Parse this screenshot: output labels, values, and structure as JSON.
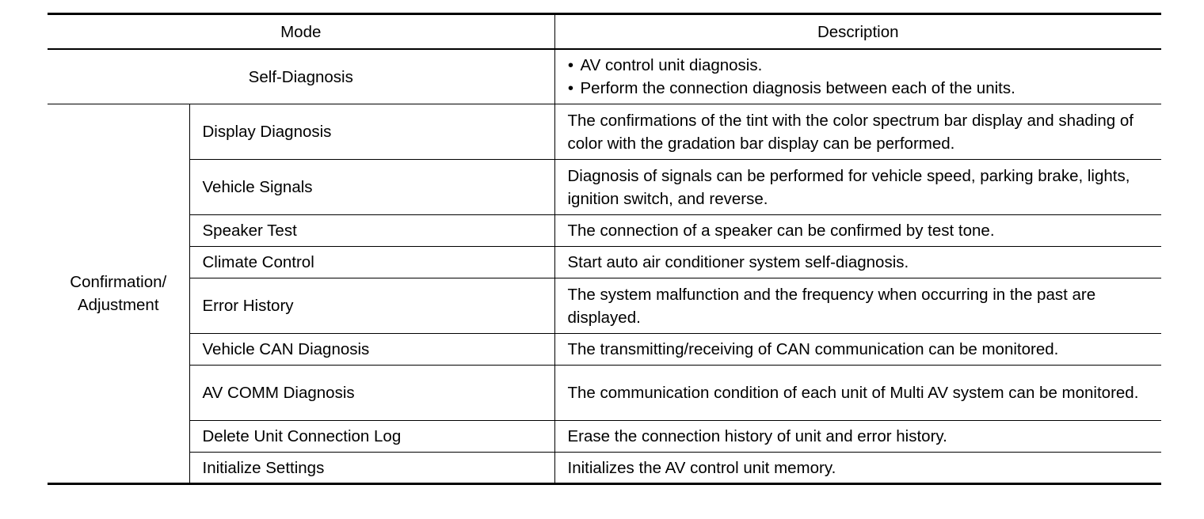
{
  "header": {
    "mode": "Mode",
    "description": "Description"
  },
  "self_diagnosis": {
    "mode": "Self-Diagnosis",
    "bullets": [
      "AV control unit diagnosis.",
      "Perform the connection diagnosis between each of the units."
    ]
  },
  "group_label": "Confirmation/ Adjustment",
  "rows": [
    {
      "mode": "Display Diagnosis",
      "description": "The confirmations of the tint with the color spectrum bar display and shading of color with the gradation bar display can be performed."
    },
    {
      "mode": "Vehicle Signals",
      "description": "Diagnosis of signals can be performed for vehicle speed, parking brake, lights, ignition switch, and reverse."
    },
    {
      "mode": "Speaker Test",
      "description": "The connection of a speaker can be confirmed by test tone."
    },
    {
      "mode": "Climate Control",
      "description": "Start auto air conditioner system self-diagnosis."
    },
    {
      "mode": "Error History",
      "description": "The system malfunction and the frequency when occurring in the past are displayed."
    },
    {
      "mode": "Vehicle CAN Diagnosis",
      "description": "The transmitting/receiving of CAN communication can be monitored."
    },
    {
      "mode": "AV COMM Diagnosis",
      "description": "The communication condition of each unit of Multi AV system can be monitored."
    },
    {
      "mode": "Delete Unit Connection Log",
      "description": "Erase the connection history of unit and error history."
    },
    {
      "mode": "Initialize Settings",
      "description": "Initializes the AV control unit memory."
    }
  ]
}
